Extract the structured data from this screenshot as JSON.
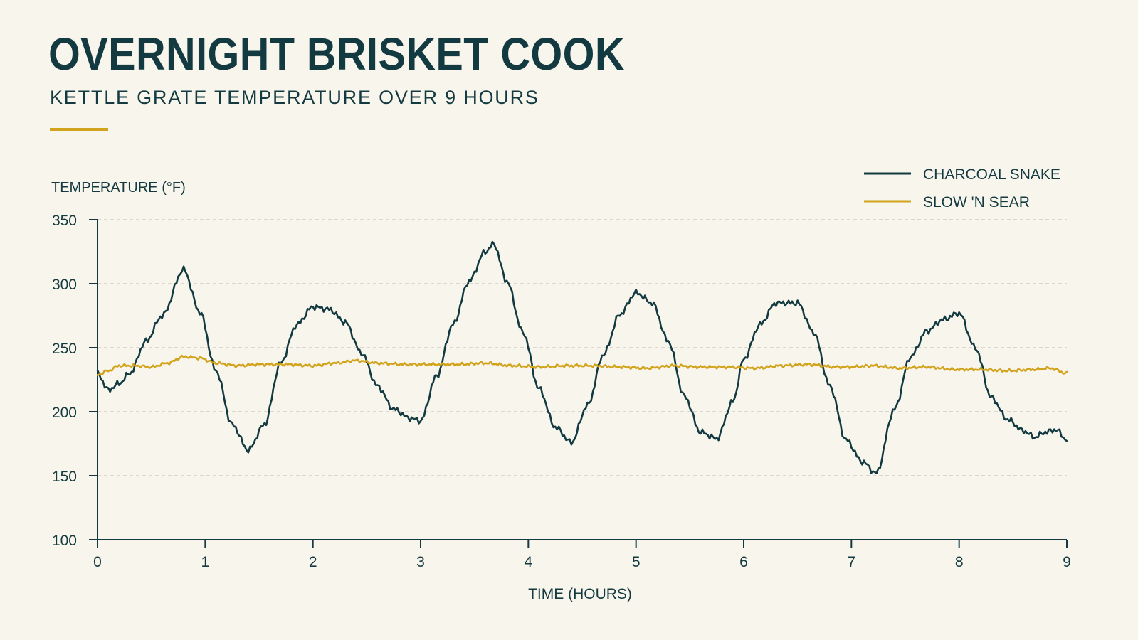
{
  "header": {
    "title": "OVERNIGHT BRISKET COOK",
    "subtitle": "KETTLE GRATE TEMPERATURE OVER 9 HOURS"
  },
  "colors": {
    "background": "#f8f5ec",
    "ink": "#123a40",
    "charcoal_snake": "#123a40",
    "slow_n_sear": "#d2a31c",
    "grid": "#bdbab0"
  },
  "chart_data": {
    "type": "line",
    "ylabel": "TEMPERATURE (°F)",
    "xlabel": "TIME (HOURS)",
    "xlim": [
      0,
      9
    ],
    "ylim": [
      100,
      350
    ],
    "x_ticks": [
      0,
      1,
      2,
      3,
      4,
      5,
      6,
      7,
      8,
      9
    ],
    "y_ticks": [
      100,
      150,
      200,
      250,
      300,
      350
    ],
    "grid": "horizontal-dashed",
    "legend_position": "top-right",
    "series": [
      {
        "name": "CHARCOAL SNAKE",
        "color": "#123a40",
        "x": [
          0,
          0.1,
          0.2,
          0.3,
          0.45,
          0.6,
          0.8,
          0.95,
          1.1,
          1.25,
          1.4,
          1.55,
          1.7,
          1.85,
          2.0,
          2.15,
          2.3,
          2.45,
          2.6,
          2.75,
          2.9,
          3.0,
          3.15,
          3.3,
          3.45,
          3.6,
          3.68,
          3.8,
          3.95,
          4.1,
          4.25,
          4.4,
          4.55,
          4.7,
          4.85,
          5.0,
          5.15,
          5.3,
          5.45,
          5.6,
          5.75,
          5.9,
          6.0,
          6.15,
          6.3,
          6.5,
          6.65,
          6.8,
          6.95,
          7.1,
          7.23,
          7.4,
          7.55,
          7.7,
          7.85,
          8.0,
          8.15,
          8.3,
          8.45,
          8.6,
          8.7,
          8.8,
          8.9,
          9.0
        ],
        "y": [
          230,
          217,
          222,
          230,
          255,
          275,
          311,
          278,
          232,
          190,
          170,
          190,
          238,
          268,
          282,
          280,
          270,
          246,
          220,
          202,
          195,
          193,
          228,
          268,
          302,
          325,
          331,
          302,
          262,
          218,
          188,
          176,
          205,
          245,
          276,
          293,
          285,
          255,
          212,
          184,
          179,
          208,
          241,
          268,
          285,
          285,
          262,
          220,
          178,
          161,
          152,
          202,
          243,
          263,
          272,
          277,
          250,
          211,
          194,
          185,
          180,
          184,
          186,
          178
        ]
      },
      {
        "name": "SLOW 'N SEAR",
        "color": "#d2a31c",
        "x": [
          0,
          0.1,
          0.2,
          0.35,
          0.5,
          0.65,
          0.8,
          0.95,
          1.1,
          1.3,
          1.5,
          1.75,
          2.0,
          2.2,
          2.4,
          2.6,
          2.85,
          3.1,
          3.35,
          3.6,
          3.85,
          4.1,
          4.35,
          4.6,
          4.85,
          5.1,
          5.35,
          5.6,
          5.85,
          6.1,
          6.35,
          6.6,
          6.85,
          7.0,
          7.2,
          7.45,
          7.7,
          7.95,
          8.2,
          8.45,
          8.7,
          8.85,
          9.0
        ],
        "y": [
          229,
          232,
          236,
          236,
          235,
          238,
          243,
          242,
          238,
          236,
          237,
          237,
          236,
          238,
          240,
          238,
          237,
          237,
          237,
          238,
          236,
          235,
          236,
          236,
          235,
          234,
          236,
          235,
          235,
          234,
          236,
          237,
          235,
          235,
          236,
          234,
          235,
          233,
          233,
          232,
          233,
          234,
          230
        ]
      }
    ]
  }
}
